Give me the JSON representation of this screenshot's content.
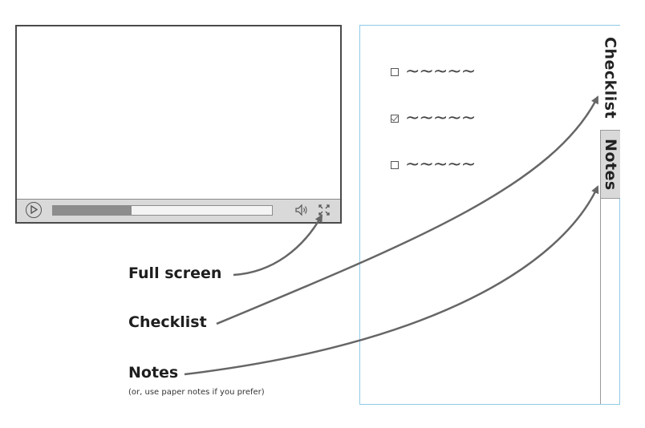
{
  "player": {
    "progress_fraction": 0.36,
    "controls": [
      "play-icon",
      "progress-bar",
      "volume-icon",
      "fullscreen-icon"
    ]
  },
  "panel": {
    "checklist_items": [
      {
        "checked": false,
        "text": "~~~~~"
      },
      {
        "checked": true,
        "text": "~~~~~"
      },
      {
        "checked": false,
        "text": "~~~~~"
      }
    ],
    "tabs": [
      {
        "label": "Checklist",
        "active": true
      },
      {
        "label": "Notes",
        "active": false
      }
    ]
  },
  "annotations": {
    "fullscreen": "Full screen",
    "checklist": "Checklist",
    "notes": "Notes",
    "notes_sub": "(or, use paper notes if you prefer)"
  },
  "colors": {
    "panel_border": "#8ec9e6",
    "arrow": "#666666",
    "control_bar": "#d9d9d9"
  }
}
